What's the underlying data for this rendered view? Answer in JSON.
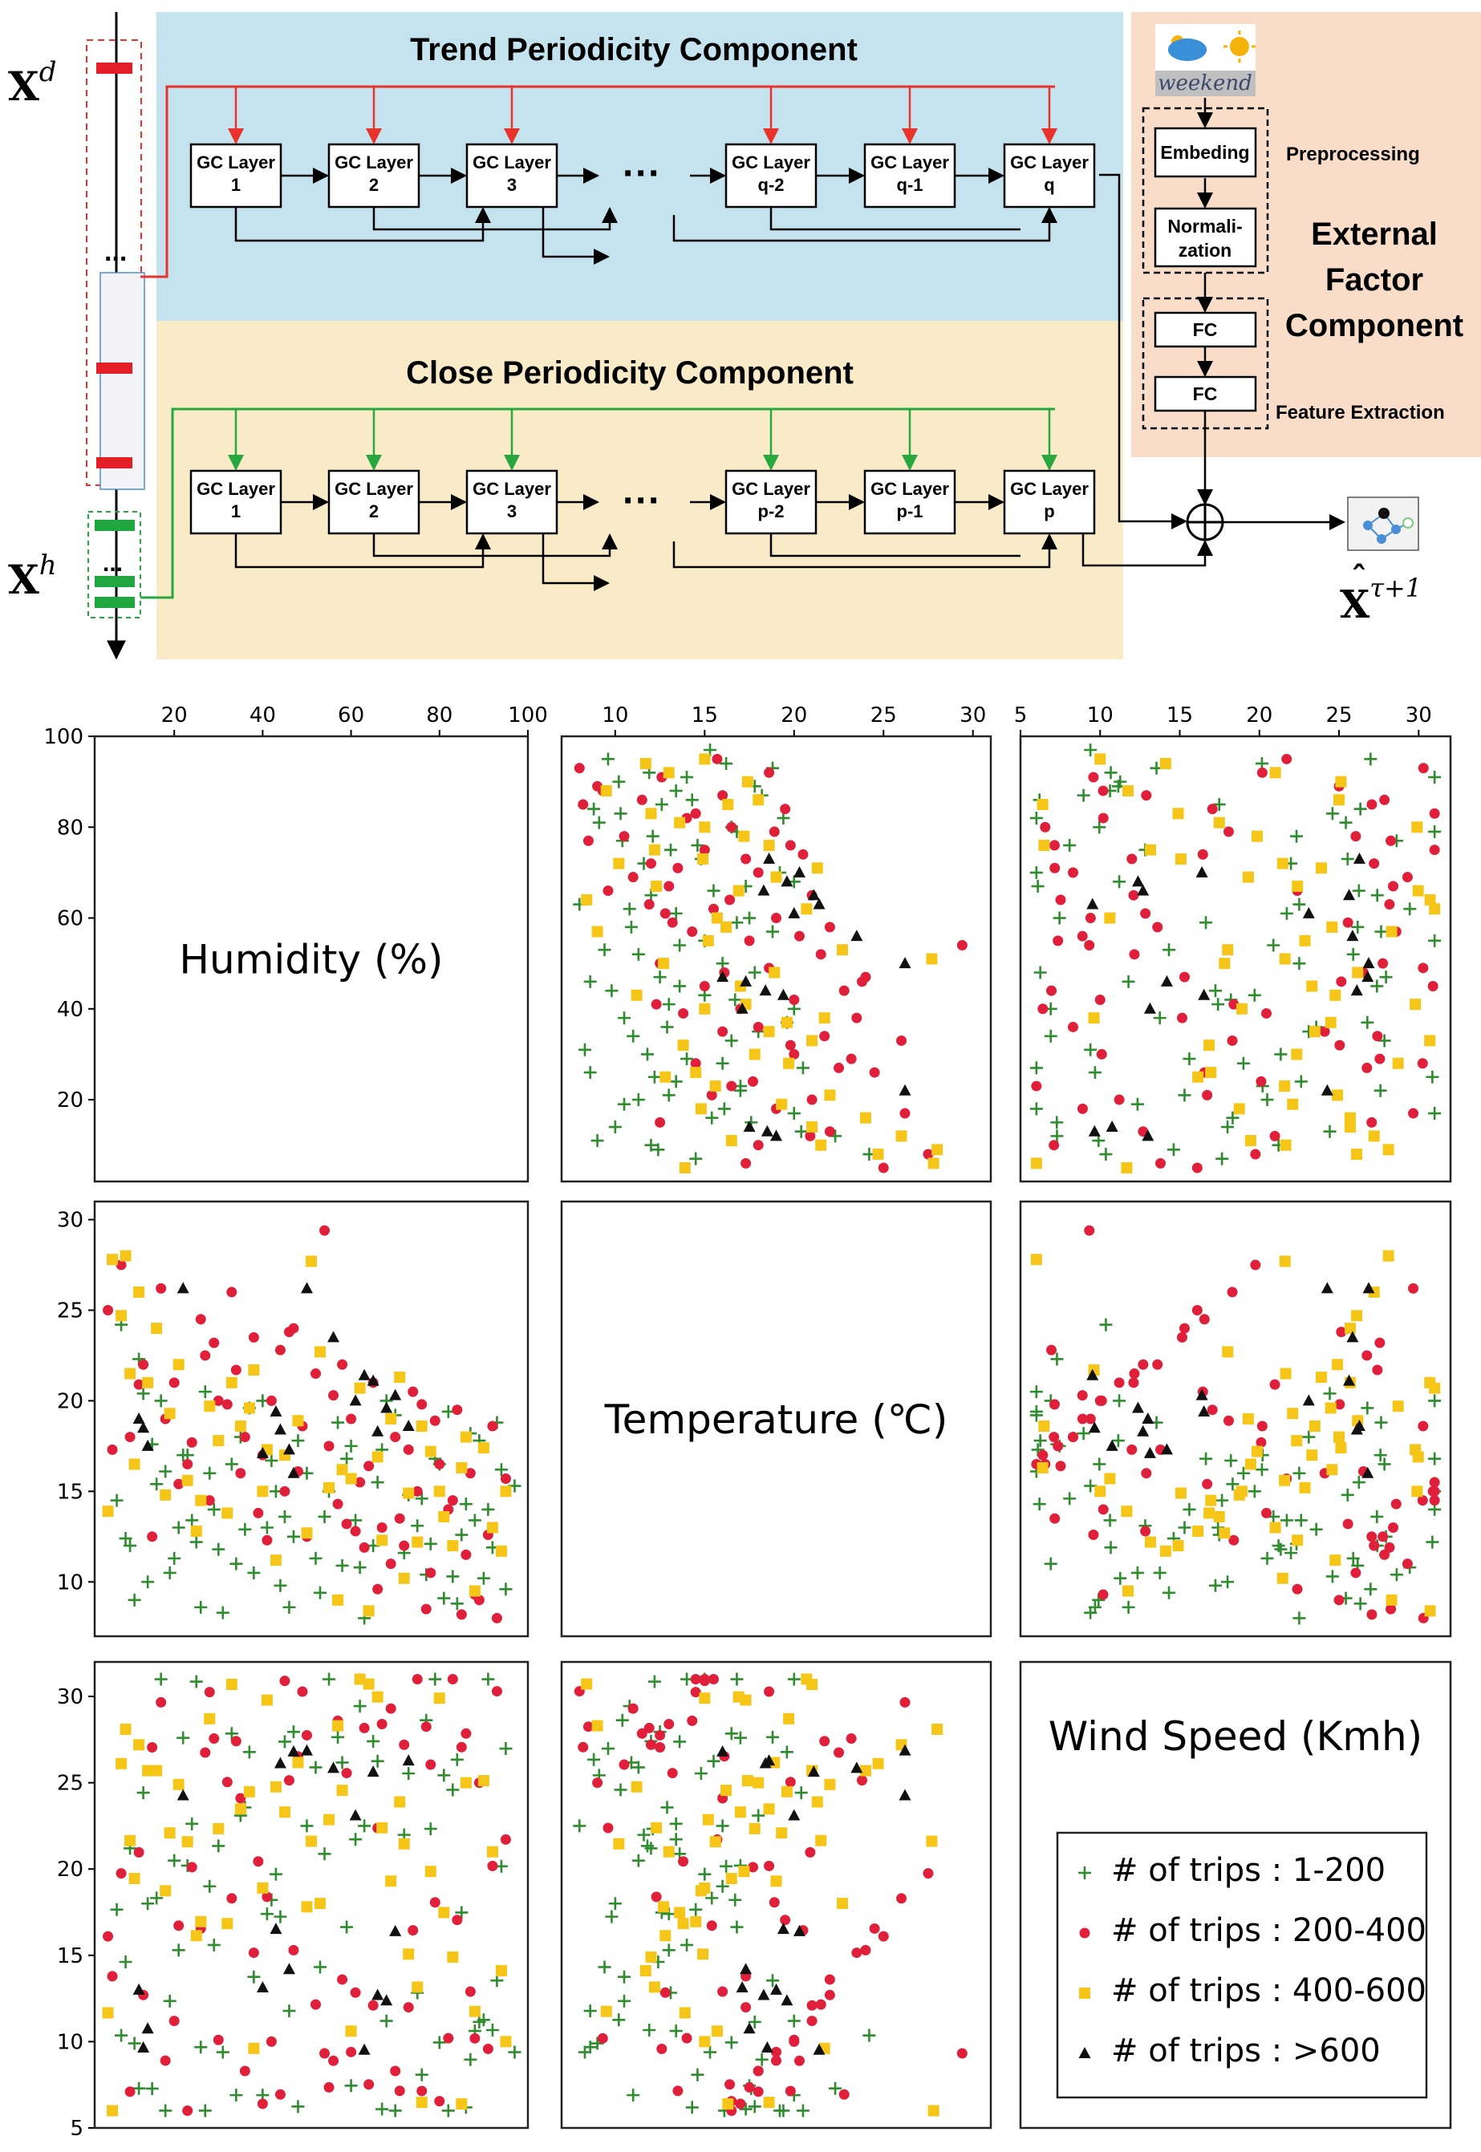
{
  "diagram": {
    "left_inputs": {
      "xd": {
        "base": "X",
        "sup": "d"
      },
      "xh": {
        "base": "X",
        "sup": "h"
      },
      "dots": "..."
    },
    "trend": {
      "title": "Trend Periodicity Component",
      "layers": [
        [
          "GC Layer",
          "1"
        ],
        [
          "GC Layer",
          "2"
        ],
        [
          "GC Layer",
          "3"
        ],
        [
          "GC Layer",
          "q-2"
        ],
        [
          "GC Layer",
          "q-1"
        ],
        [
          "GC Layer",
          "q"
        ]
      ],
      "ellipsis": "···"
    },
    "close": {
      "title": "Close Periodicity Component",
      "layers": [
        [
          "GC Layer",
          "1"
        ],
        [
          "GC Layer",
          "2"
        ],
        [
          "GC Layer",
          "3"
        ],
        [
          "GC Layer",
          "p-2"
        ],
        [
          "GC Layer",
          "p-1"
        ],
        [
          "GC Layer",
          "p"
        ]
      ],
      "ellipsis": "···"
    },
    "external": {
      "weekend": "weekend",
      "embeding": "Embeding",
      "normalization": [
        "Normali-",
        "zation"
      ],
      "preprocessing": "Preprocessing",
      "title": [
        "External",
        "Factor",
        "Component"
      ],
      "fc1": "FC",
      "fc2": "FC",
      "feature_extraction": "Feature Extraction"
    },
    "output": {
      "base": "X",
      "sup": "τ+1"
    },
    "colors": {
      "trend_bg": "#c5e3ee",
      "close_bg": "#faebc8",
      "external_bg": "#f9ddc9",
      "red_line": "#e8332c",
      "green_line": "#27a83f",
      "red_bar": "#e31e26",
      "green_bar": "#1fa63e"
    }
  },
  "chart_data": {
    "type": "scatter",
    "variables": [
      "Humidity (%)",
      "Temperature (℃)",
      "Wind Speed (Kmh)"
    ],
    "diagonal_labels": [
      "Humidity (%)",
      "Temperature (℃)",
      "Wind Speed (Kmh)"
    ],
    "ticks": {
      "humidity": [
        20,
        40,
        60,
        80,
        100
      ],
      "temperature": [
        10,
        15,
        20,
        25,
        30
      ],
      "wind": [
        5,
        10,
        15,
        20,
        25,
        30
      ]
    },
    "ranges": {
      "humidity": [
        2,
        100
      ],
      "temperature": [
        7,
        31
      ],
      "wind": [
        5,
        32
      ]
    },
    "legend": [
      {
        "label": "# of trips : 1-200",
        "marker": "plus",
        "color": "#2e8b2e"
      },
      {
        "label": "# of trips : 200-400",
        "marker": "circle",
        "color": "#e0203a"
      },
      {
        "label": "# of trips : 400-600",
        "marker": "square",
        "color": "#f5c518"
      },
      {
        "label": "# of trips : >600",
        "marker": "triangle",
        "color": "#111111"
      }
    ],
    "series": [
      {
        "name": "# of trips : 1-200",
        "points": [
          [
            93,
            18.8
          ],
          [
            89,
            17.8
          ],
          [
            86,
            14.3
          ],
          [
            84,
            8.8
          ],
          [
            92,
            11.9
          ],
          [
            80,
            16.5
          ],
          [
            77,
            10.4
          ],
          [
            76,
            14.6
          ],
          [
            68,
            20.0
          ],
          [
            65,
            12.0
          ],
          [
            63,
            8.0
          ],
          [
            60,
            17.5
          ],
          [
            58,
            10.9
          ],
          [
            55,
            15.0
          ],
          [
            52,
            11.3
          ],
          [
            48,
            17.8
          ],
          [
            45,
            13.6
          ],
          [
            40,
            20.0
          ],
          [
            36,
            12.9
          ],
          [
            33,
            16.5
          ],
          [
            30,
            11.8
          ],
          [
            27,
            20.5
          ],
          [
            24,
            13.4
          ],
          [
            22,
            17.0
          ],
          [
            20,
            11.3
          ],
          [
            17,
            20.0
          ],
          [
            14,
            10.0
          ],
          [
            12,
            22.3
          ],
          [
            10,
            12.0
          ],
          [
            8,
            24.2
          ],
          [
            95,
            9.6
          ],
          [
            91,
            14.0
          ],
          [
            87,
            18.2
          ],
          [
            83,
            10.3
          ],
          [
            79,
            16.8
          ],
          [
            72,
            11.6
          ],
          [
            70,
            19.2
          ],
          [
            66,
            15.5
          ],
          [
            61,
            13.4
          ],
          [
            57,
            18.8
          ],
          [
            53,
            9.4
          ],
          [
            50,
            16.0
          ],
          [
            46,
            8.6
          ],
          [
            43,
            15.0
          ],
          [
            41,
            13.0
          ],
          [
            38,
            10.5
          ],
          [
            35,
            18.0
          ],
          [
            31,
            8.3
          ],
          [
            28,
            16.0
          ],
          [
            26,
            8.6
          ],
          [
            23,
            17.0
          ],
          [
            21,
            13.0
          ],
          [
            19,
            10.5
          ],
          [
            16,
            15.4
          ],
          [
            13,
            20.4
          ],
          [
            11,
            9.0
          ],
          [
            9,
            12.4
          ],
          [
            7,
            14.5
          ],
          [
            85,
            12.6
          ],
          [
            75,
            13.1
          ],
          [
            62,
            10.8
          ],
          [
            44,
            9.8
          ],
          [
            37,
            19.6
          ],
          [
            29,
            14.0
          ],
          [
            47,
            12.5
          ],
          [
            59,
            16.8
          ],
          [
            73,
            14.8
          ],
          [
            81,
            9.1
          ],
          [
            88,
            13.4
          ],
          [
            94,
            16.2
          ],
          [
            90,
            10.2
          ],
          [
            67,
            17.3
          ],
          [
            54,
            13.6
          ],
          [
            42,
            16.7
          ],
          [
            34,
            11.0
          ],
          [
            25,
            12.2
          ],
          [
            18,
            16.1
          ],
          [
            15,
            17.6
          ],
          [
            97,
            15.3
          ],
          [
            82,
            19.4
          ],
          [
            78,
            12.1
          ]
        ]
      },
      {
        "name": "# of trips : 200-400",
        "points": [
          [
            89,
            9.0
          ],
          [
            86,
            11.5
          ],
          [
            83,
            14.5
          ],
          [
            80,
            16.5
          ],
          [
            78,
            10.5
          ],
          [
            75,
            15.0
          ],
          [
            72,
            12.0
          ],
          [
            70,
            18.0
          ],
          [
            67,
            13.0
          ],
          [
            65,
            21.0
          ],
          [
            62,
            15.5
          ],
          [
            60,
            19.0
          ],
          [
            58,
            22.0
          ],
          [
            55,
            17.5
          ],
          [
            52,
            21.5
          ],
          [
            50,
            12.5
          ],
          [
            47,
            24.0
          ],
          [
            45,
            15.0
          ],
          [
            42,
            20.0
          ],
          [
            40,
            17.0
          ],
          [
            38,
            23.5
          ],
          [
            36,
            18.0
          ],
          [
            33,
            26.0
          ],
          [
            30,
            20.0
          ],
          [
            28,
            14.5
          ],
          [
            26,
            24.5
          ],
          [
            23,
            16.5
          ],
          [
            20,
            21.0
          ],
          [
            18,
            19.0
          ],
          [
            15,
            12.5
          ],
          [
            13,
            22.0
          ],
          [
            10,
            18.0
          ],
          [
            8,
            27.5
          ],
          [
            5,
            25.0
          ],
          [
            93,
            8.0
          ],
          [
            91,
            12.6
          ],
          [
            87,
            16.0
          ],
          [
            84,
            19.5
          ],
          [
            82,
            14.0
          ],
          [
            77,
            8.5
          ],
          [
            74,
            20.5
          ],
          [
            69,
            11.0
          ],
          [
            64,
            16.4
          ],
          [
            57,
            14.3
          ],
          [
            49,
            18.6
          ],
          [
            44,
            22.8
          ],
          [
            39,
            13.8
          ],
          [
            32,
            19.8
          ],
          [
            27,
            22.5
          ],
          [
            24,
            17.7
          ],
          [
            21,
            15.4
          ],
          [
            17,
            26.2
          ],
          [
            12,
            20.9
          ],
          [
            6,
            17.3
          ],
          [
            95,
            15.7
          ],
          [
            88,
            9.3
          ],
          [
            79,
            18.9
          ],
          [
            71,
            13.5
          ],
          [
            63,
            11.9
          ],
          [
            56,
            20.3
          ],
          [
            48,
            16.1
          ],
          [
            41,
            12.3
          ],
          [
            34,
            21.7
          ],
          [
            29,
            23.2
          ],
          [
            35,
            16.0
          ],
          [
            61,
            12.8
          ],
          [
            76,
            19.8
          ],
          [
            85,
            8.2
          ],
          [
            92,
            18.6
          ],
          [
            54,
            29.4
          ],
          [
            46,
            23.8
          ],
          [
            66,
            9.6
          ],
          [
            73,
            17.3
          ],
          [
            59,
            13.2
          ]
        ]
      },
      {
        "name": "# of trips : 400-600",
        "points": [
          [
            95,
            15.0
          ],
          [
            85,
            16.3
          ],
          [
            80,
            15.0
          ],
          [
            76,
            18.6
          ],
          [
            72,
            10.2
          ],
          [
            67,
            12.3
          ],
          [
            62,
            20.7
          ],
          [
            58,
            16.2
          ],
          [
            55,
            15.2
          ],
          [
            50,
            12.7
          ],
          [
            48,
            18.9
          ],
          [
            45,
            17.0
          ],
          [
            40,
            15.0
          ],
          [
            37,
            19.6
          ],
          [
            35,
            18.6
          ],
          [
            32,
            13.8
          ],
          [
            30,
            17.8
          ],
          [
            26,
            14.5
          ],
          [
            21,
            22.0
          ],
          [
            16,
            24.0
          ],
          [
            12,
            26.0
          ],
          [
            10,
            21.5
          ],
          [
            8,
            24.7
          ],
          [
            5,
            13.9
          ],
          [
            88,
            9.5
          ],
          [
            90,
            17.4
          ],
          [
            83,
            12.0
          ],
          [
            78,
            17.2
          ],
          [
            73,
            14.9
          ],
          [
            69,
            19.0
          ],
          [
            64,
            8.4
          ],
          [
            57,
            9.0
          ],
          [
            53,
            22.7
          ],
          [
            43,
            11.2
          ],
          [
            38,
            21.7
          ],
          [
            28,
            19.7
          ],
          [
            23,
            15.6
          ],
          [
            18,
            14.8
          ],
          [
            14,
            21.0
          ],
          [
            11,
            16.5
          ],
          [
            6,
            27.8
          ],
          [
            92,
            13.0
          ],
          [
            86,
            18.0
          ],
          [
            81,
            13.6
          ],
          [
            75,
            12.2
          ],
          [
            71,
            21.3
          ],
          [
            60,
            15.7
          ],
          [
            51,
            27.7
          ],
          [
            41,
            17.3
          ],
          [
            33,
            21.0
          ],
          [
            25,
            12.8
          ],
          [
            19,
            19.3
          ],
          [
            9,
            28.0
          ],
          [
            94,
            11.7
          ],
          [
            66,
            16.9
          ]
        ]
      },
      {
        "name": "# of trips : >600",
        "points": [
          [
            73,
            18.6
          ],
          [
            65,
            21.1
          ],
          [
            61,
            20.0
          ],
          [
            56,
            23.5
          ],
          [
            50,
            26.2
          ],
          [
            46,
            17.3
          ],
          [
            43,
            19.4
          ],
          [
            40,
            17.1
          ],
          [
            63,
            21.4
          ],
          [
            68,
            19.6
          ],
          [
            70,
            20.3
          ],
          [
            66,
            18.3
          ],
          [
            44,
            18.4
          ],
          [
            47,
            16.0
          ],
          [
            22,
            26.2
          ],
          [
            13,
            18.5
          ],
          [
            14,
            17.5
          ],
          [
            12,
            19.0
          ]
        ]
      }
    ]
  }
}
